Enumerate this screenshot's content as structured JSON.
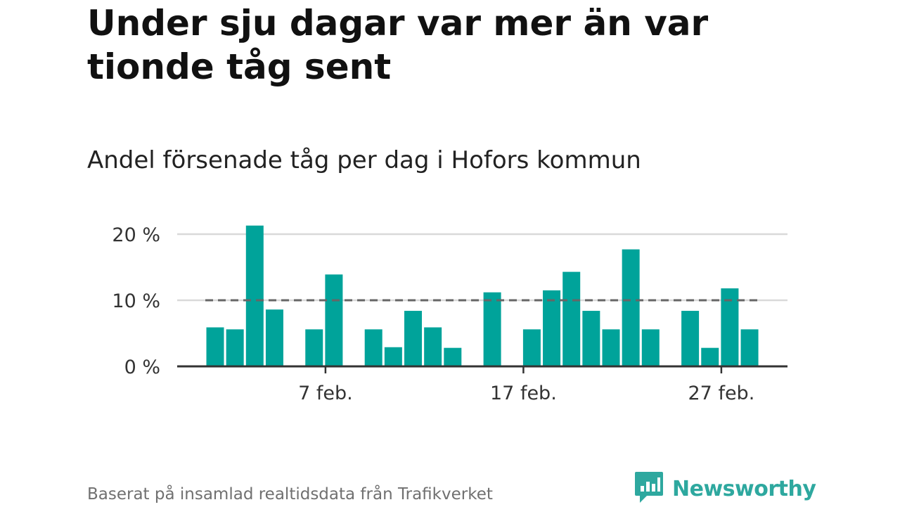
{
  "header": {
    "title": "Under sju dagar var mer än var tionde tåg sent",
    "subtitle": "Andel försenade tåg per dag i Hofors kommun"
  },
  "footer": {
    "source": "Baserat på insamlad realtidsdata från Trafikverket",
    "brand": "Newsworthy"
  },
  "colors": {
    "bar": "#00a39a",
    "brand": "#2ea89f",
    "reference_line": "#666666",
    "grid": "#d9d9d9",
    "axis": "#333333"
  },
  "icons": {
    "brand_logo": "bar-chart-speech-bubble-icon"
  },
  "chart_data": {
    "type": "bar",
    "x": [
      "1 feb.",
      "2 feb.",
      "3 feb.",
      "4 feb.",
      "5 feb.",
      "6 feb.",
      "7 feb.",
      "8 feb.",
      "9 feb.",
      "10 feb.",
      "11 feb.",
      "12 feb.",
      "13 feb.",
      "14 feb.",
      "15 feb.",
      "16 feb.",
      "17 feb.",
      "18 feb.",
      "19 feb.",
      "20 feb.",
      "21 feb.",
      "22 feb.",
      "23 feb.",
      "24 feb.",
      "25 feb.",
      "26 feb.",
      "27 feb.",
      "28 feb."
    ],
    "values": [
      5.9,
      5.6,
      21.3,
      8.6,
      0,
      5.6,
      13.9,
      0,
      5.6,
      2.9,
      8.4,
      5.9,
      2.8,
      0,
      11.2,
      0,
      5.6,
      11.5,
      14.3,
      8.4,
      5.6,
      17.7,
      5.6,
      0,
      8.4,
      2.8,
      11.8,
      5.6
    ],
    "reference_line": 10,
    "ylim": [
      0,
      22
    ],
    "y_ticks": [
      {
        "value": 0,
        "label": "0 %"
      },
      {
        "value": 10,
        "label": "10 %"
      },
      {
        "value": 20,
        "label": "20 %"
      }
    ],
    "x_ticks": [
      {
        "index": 6,
        "label": "7 feb."
      },
      {
        "index": 16,
        "label": "17 feb."
      },
      {
        "index": 26,
        "label": "27 feb."
      }
    ],
    "grid": true,
    "legend": "none"
  }
}
